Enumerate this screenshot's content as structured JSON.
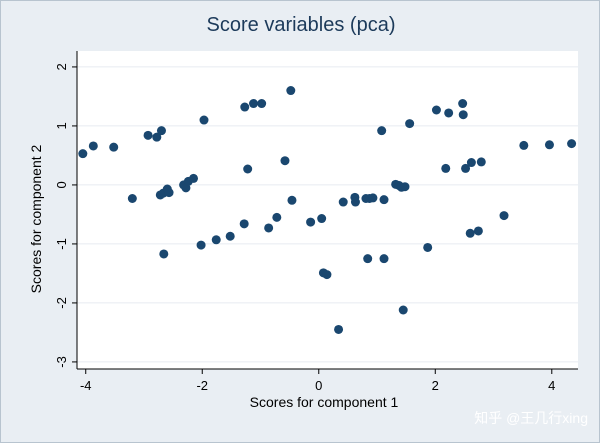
{
  "watermark": "知乎 @王几行xing",
  "chart_data": {
    "type": "scatter",
    "title": "Score variables (pca)",
    "xlabel": "Scores for component 1",
    "ylabel": "Scores for component 2",
    "xlim": [
      -4.15,
      4.45
    ],
    "ylim": [
      -3.12,
      2.27
    ],
    "xticks": [
      -4,
      -2,
      0,
      2,
      4
    ],
    "yticks": [
      -3,
      -2,
      -1,
      0,
      1,
      2
    ],
    "xtick_labels": [
      "-4",
      "-2",
      "0",
      "2",
      "4"
    ],
    "ytick_labels": [
      "-3",
      "-2",
      "-1",
      "0",
      "1",
      "2"
    ],
    "grid": "horizontal",
    "colors": {
      "marker": "#1a476f",
      "plot_bg": "#ffffff",
      "outer_bg": "#e9eef3",
      "grid": "#e6ebf0",
      "title": "#1c3a5a"
    },
    "points": [
      {
        "x": -4.05,
        "y": 0.53
      },
      {
        "x": -3.87,
        "y": 0.66
      },
      {
        "x": -3.52,
        "y": 0.64
      },
      {
        "x": -3.2,
        "y": -0.23
      },
      {
        "x": -2.93,
        "y": 0.84
      },
      {
        "x": -2.78,
        "y": 0.81
      },
      {
        "x": -2.7,
        "y": 0.92
      },
      {
        "x": -2.72,
        "y": -0.17
      },
      {
        "x": -2.67,
        "y": -0.14
      },
      {
        "x": -2.6,
        "y": -0.07
      },
      {
        "x": -2.57,
        "y": -0.13
      },
      {
        "x": -2.66,
        "y": -1.17
      },
      {
        "x": -2.32,
        "y": 0.0
      },
      {
        "x": -2.28,
        "y": -0.05
      },
      {
        "x": -2.24,
        "y": 0.06
      },
      {
        "x": -2.15,
        "y": 0.11
      },
      {
        "x": -2.02,
        "y": -1.02
      },
      {
        "x": -1.97,
        "y": 1.1
      },
      {
        "x": -1.76,
        "y": -0.93
      },
      {
        "x": -1.52,
        "y": -0.87
      },
      {
        "x": -1.28,
        "y": -0.66
      },
      {
        "x": -1.27,
        "y": 1.32
      },
      {
        "x": -1.22,
        "y": 0.27
      },
      {
        "x": -1.12,
        "y": 1.38
      },
      {
        "x": -0.98,
        "y": 1.38
      },
      {
        "x": -0.86,
        "y": -0.73
      },
      {
        "x": -0.72,
        "y": -0.55
      },
      {
        "x": -0.58,
        "y": 0.41
      },
      {
        "x": -0.48,
        "y": 1.6
      },
      {
        "x": -0.46,
        "y": -0.26
      },
      {
        "x": -0.14,
        "y": -0.63
      },
      {
        "x": 0.05,
        "y": -0.57
      },
      {
        "x": 0.08,
        "y": -1.49
      },
      {
        "x": 0.14,
        "y": -1.52
      },
      {
        "x": 0.34,
        "y": -2.45
      },
      {
        "x": 0.42,
        "y": -0.29
      },
      {
        "x": 0.62,
        "y": -0.21
      },
      {
        "x": 0.63,
        "y": -0.29
      },
      {
        "x": 0.81,
        "y": -0.23
      },
      {
        "x": 0.84,
        "y": -1.25
      },
      {
        "x": 0.87,
        "y": -0.23
      },
      {
        "x": 0.93,
        "y": -0.22
      },
      {
        "x": 1.08,
        "y": 0.92
      },
      {
        "x": 1.12,
        "y": -0.25
      },
      {
        "x": 1.12,
        "y": -1.25
      },
      {
        "x": 1.32,
        "y": 0.01
      },
      {
        "x": 1.38,
        "y": -0.01
      },
      {
        "x": 1.42,
        "y": -0.04
      },
      {
        "x": 1.48,
        "y": -0.03
      },
      {
        "x": 1.45,
        "y": -2.12
      },
      {
        "x": 1.56,
        "y": 1.04
      },
      {
        "x": 1.87,
        "y": -1.06
      },
      {
        "x": 2.02,
        "y": 1.27
      },
      {
        "x": 2.18,
        "y": 0.28
      },
      {
        "x": 2.23,
        "y": 1.22
      },
      {
        "x": 2.47,
        "y": 1.38
      },
      {
        "x": 2.48,
        "y": 1.19
      },
      {
        "x": 2.52,
        "y": 0.28
      },
      {
        "x": 2.62,
        "y": 0.38
      },
      {
        "x": 2.6,
        "y": -0.82
      },
      {
        "x": 2.74,
        "y": -0.78
      },
      {
        "x": 2.79,
        "y": 0.39
      },
      {
        "x": 3.18,
        "y": -0.52
      },
      {
        "x": 3.52,
        "y": 0.67
      },
      {
        "x": 3.96,
        "y": 0.68
      },
      {
        "x": 4.34,
        "y": 0.7
      }
    ]
  }
}
